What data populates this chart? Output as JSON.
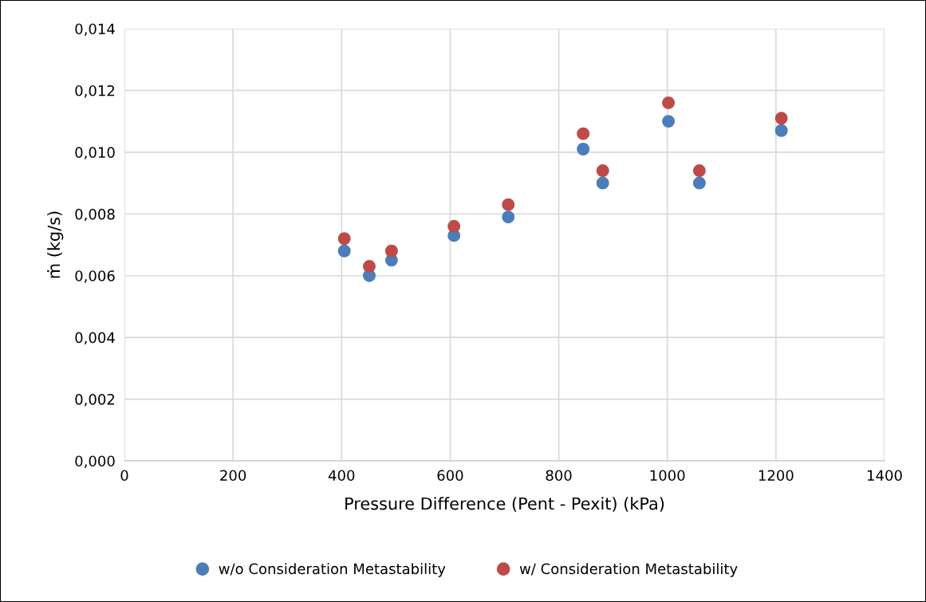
{
  "chart_data": {
    "type": "scatter",
    "xlabel": "Pressure Difference (Pent - Pexit) (kPa)",
    "ylabel": "ṁ (kg/s)",
    "x": [
      405,
      451,
      492,
      607,
      707,
      845,
      881,
      1002,
      1059,
      1210
    ],
    "series": [
      {
        "name": "w/o Consideration Metastability",
        "color": "#4a7ebb",
        "values": [
          0.0068,
          0.006,
          0.0065,
          0.0073,
          0.0079,
          0.0101,
          0.009,
          0.011,
          0.009,
          0.0107
        ]
      },
      {
        "name": "w/ Consideration Metastability",
        "color": "#be4b48",
        "values": [
          0.0072,
          0.0063,
          0.0068,
          0.0076,
          0.0083,
          0.0106,
          0.0094,
          0.0116,
          0.0094,
          0.0111
        ]
      }
    ],
    "xlim": [
      0,
      1400
    ],
    "xticks": [
      0,
      200,
      400,
      600,
      800,
      1000,
      1200,
      1400
    ],
    "ylim": [
      0,
      0.014
    ],
    "yticks": [
      {
        "value": 0,
        "label": "0,000"
      },
      {
        "value": 0.002,
        "label": "0,002"
      },
      {
        "value": 0.004,
        "label": "0,004"
      },
      {
        "value": 0.006,
        "label": "0,006"
      },
      {
        "value": 0.008,
        "label": "0,008"
      },
      {
        "value": 0.01,
        "label": "0,010"
      },
      {
        "value": 0.012,
        "label": "0,012"
      },
      {
        "value": 0.014,
        "label": "0,014"
      }
    ],
    "grid": true,
    "legend": "bottom",
    "marker": "circle"
  }
}
